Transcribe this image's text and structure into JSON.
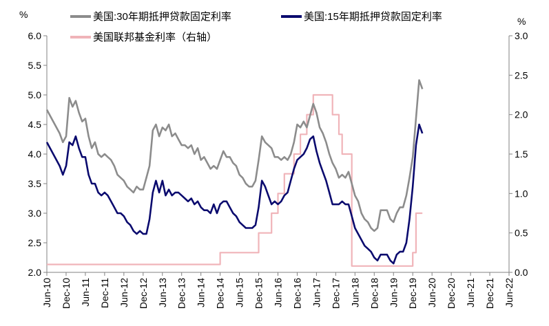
{
  "chart_data": {
    "type": "line",
    "left_axis_unit": "%",
    "right_axis_unit": "%",
    "ylim_left": [
      2.0,
      6.0
    ],
    "ylim_right": [
      0.0,
      3.0
    ],
    "yticks_left": [
      "2.0",
      "2.5",
      "3.0",
      "3.5",
      "4.0",
      "4.5",
      "5.0",
      "5.5",
      "6.0"
    ],
    "yticks_right": [
      "0.0",
      "0.5",
      "1.0",
      "1.5",
      "2.0",
      "2.5",
      "3.0"
    ],
    "x_tick_labels": [
      "Jun-10",
      "Dec-10",
      "Jun-11",
      "Dec-11",
      "Jun-12",
      "Dec-12",
      "Jun-13",
      "Dec-13",
      "Jun-14",
      "Dec-14",
      "Jun-15",
      "Dec-15",
      "Jun-16",
      "Dec-16",
      "Jun-17",
      "Dec-17",
      "Jun-18",
      "Dec-18",
      "Jun-19",
      "Dec-19",
      "Jun-20",
      "Dec-20",
      "Jun-21",
      "Dec-21",
      "Jun-22"
    ],
    "grid": false,
    "legend_position": "top",
    "series": [
      {
        "name": "美国:30年期抵押贷款固定利率",
        "axis": "left",
        "color": "#8c8c8c",
        "points": [
          [
            0,
            4.75
          ],
          [
            2,
            4.55
          ],
          [
            4,
            4.35
          ],
          [
            5,
            4.2
          ],
          [
            6,
            4.3
          ],
          [
            7,
            4.95
          ],
          [
            8,
            4.8
          ],
          [
            9,
            4.9
          ],
          [
            10,
            4.7
          ],
          [
            11,
            4.55
          ],
          [
            12,
            4.6
          ],
          [
            13,
            4.3
          ],
          [
            14,
            4.1
          ],
          [
            15,
            4.2
          ],
          [
            16,
            4.0
          ],
          [
            17,
            3.95
          ],
          [
            18,
            4.0
          ],
          [
            19,
            3.95
          ],
          [
            20,
            3.9
          ],
          [
            21,
            3.8
          ],
          [
            22,
            3.65
          ],
          [
            23,
            3.6
          ],
          [
            24,
            3.55
          ],
          [
            25,
            3.45
          ],
          [
            26,
            3.4
          ],
          [
            27,
            3.35
          ],
          [
            28,
            3.45
          ],
          [
            29,
            3.4
          ],
          [
            30,
            3.4
          ],
          [
            31,
            3.6
          ],
          [
            32,
            3.8
          ],
          [
            33,
            4.4
          ],
          [
            34,
            4.5
          ],
          [
            35,
            4.3
          ],
          [
            36,
            4.45
          ],
          [
            37,
            4.4
          ],
          [
            38,
            4.5
          ],
          [
            39,
            4.3
          ],
          [
            40,
            4.35
          ],
          [
            41,
            4.25
          ],
          [
            42,
            4.15
          ],
          [
            43,
            4.15
          ],
          [
            44,
            4.1
          ],
          [
            45,
            4.15
          ],
          [
            46,
            4.0
          ],
          [
            47,
            4.1
          ],
          [
            48,
            3.9
          ],
          [
            49,
            3.95
          ],
          [
            50,
            3.85
          ],
          [
            51,
            3.75
          ],
          [
            52,
            3.8
          ],
          [
            53,
            3.75
          ],
          [
            54,
            3.9
          ],
          [
            55,
            4.05
          ],
          [
            56,
            3.95
          ],
          [
            57,
            3.95
          ],
          [
            58,
            3.85
          ],
          [
            59,
            3.8
          ],
          [
            60,
            3.65
          ],
          [
            61,
            3.6
          ],
          [
            62,
            3.5
          ],
          [
            63,
            3.45
          ],
          [
            64,
            3.45
          ],
          [
            65,
            3.55
          ],
          [
            66,
            3.9
          ],
          [
            67,
            4.3
          ],
          [
            68,
            4.2
          ],
          [
            69,
            4.15
          ],
          [
            70,
            4.1
          ],
          [
            71,
            3.95
          ],
          [
            72,
            3.95
          ],
          [
            73,
            3.9
          ],
          [
            74,
            3.95
          ],
          [
            75,
            3.9
          ],
          [
            76,
            4.0
          ],
          [
            77,
            4.2
          ],
          [
            78,
            4.5
          ],
          [
            79,
            4.45
          ],
          [
            80,
            4.55
          ],
          [
            81,
            4.45
          ],
          [
            82,
            4.65
          ],
          [
            83,
            4.85
          ],
          [
            84,
            4.7
          ],
          [
            85,
            4.45
          ],
          [
            86,
            4.35
          ],
          [
            87,
            4.2
          ],
          [
            88,
            4.0
          ],
          [
            89,
            3.85
          ],
          [
            90,
            3.75
          ],
          [
            91,
            3.6
          ],
          [
            92,
            3.65
          ],
          [
            93,
            3.6
          ],
          [
            94,
            3.7
          ],
          [
            95,
            3.5
          ],
          [
            96,
            3.3
          ],
          [
            97,
            3.2
          ],
          [
            98,
            3.0
          ],
          [
            99,
            2.9
          ],
          [
            100,
            2.85
          ],
          [
            101,
            2.75
          ],
          [
            102,
            2.7
          ],
          [
            103,
            2.75
          ],
          [
            104,
            3.05
          ],
          [
            105,
            3.05
          ],
          [
            106,
            3.05
          ],
          [
            107,
            2.9
          ],
          [
            108,
            2.85
          ],
          [
            109,
            3.0
          ],
          [
            110,
            3.1
          ],
          [
            111,
            3.1
          ],
          [
            112,
            3.3
          ],
          [
            113,
            3.6
          ],
          [
            114,
            3.95
          ],
          [
            115,
            4.6
          ],
          [
            116,
            5.25
          ],
          [
            117,
            5.1
          ]
        ]
      },
      {
        "name": "美国:15年期抵押贷款固定利率",
        "axis": "left",
        "color": "#0a0a6e",
        "points": [
          [
            0,
            4.2
          ],
          [
            2,
            4.0
          ],
          [
            4,
            3.8
          ],
          [
            5,
            3.65
          ],
          [
            6,
            3.8
          ],
          [
            7,
            4.2
          ],
          [
            8,
            4.15
          ],
          [
            9,
            4.3
          ],
          [
            10,
            4.1
          ],
          [
            11,
            3.95
          ],
          [
            12,
            3.95
          ],
          [
            13,
            3.65
          ],
          [
            14,
            3.5
          ],
          [
            15,
            3.5
          ],
          [
            16,
            3.35
          ],
          [
            17,
            3.3
          ],
          [
            18,
            3.35
          ],
          [
            19,
            3.3
          ],
          [
            20,
            3.2
          ],
          [
            21,
            3.1
          ],
          [
            22,
            3.0
          ],
          [
            23,
            3.0
          ],
          [
            24,
            2.95
          ],
          [
            25,
            2.85
          ],
          [
            26,
            2.8
          ],
          [
            27,
            2.7
          ],
          [
            28,
            2.65
          ],
          [
            29,
            2.7
          ],
          [
            30,
            2.65
          ],
          [
            31,
            2.65
          ],
          [
            32,
            2.9
          ],
          [
            33,
            3.35
          ],
          [
            34,
            3.55
          ],
          [
            35,
            3.35
          ],
          [
            36,
            3.55
          ],
          [
            37,
            3.3
          ],
          [
            38,
            3.4
          ],
          [
            39,
            3.3
          ],
          [
            40,
            3.35
          ],
          [
            41,
            3.35
          ],
          [
            42,
            3.3
          ],
          [
            43,
            3.25
          ],
          [
            44,
            3.2
          ],
          [
            45,
            3.25
          ],
          [
            46,
            3.15
          ],
          [
            47,
            3.2
          ],
          [
            48,
            3.1
          ],
          [
            49,
            3.05
          ],
          [
            50,
            3.05
          ],
          [
            51,
            3.0
          ],
          [
            52,
            3.15
          ],
          [
            53,
            3.0
          ],
          [
            54,
            3.15
          ],
          [
            55,
            3.2
          ],
          [
            56,
            3.2
          ],
          [
            57,
            3.1
          ],
          [
            58,
            3.0
          ],
          [
            59,
            2.95
          ],
          [
            60,
            2.85
          ],
          [
            61,
            2.8
          ],
          [
            62,
            2.75
          ],
          [
            63,
            2.75
          ],
          [
            64,
            2.75
          ],
          [
            65,
            2.8
          ],
          [
            66,
            3.1
          ],
          [
            67,
            3.55
          ],
          [
            68,
            3.45
          ],
          [
            69,
            3.3
          ],
          [
            70,
            3.15
          ],
          [
            71,
            3.2
          ],
          [
            72,
            3.15
          ],
          [
            73,
            3.2
          ],
          [
            74,
            3.3
          ],
          [
            75,
            3.35
          ],
          [
            76,
            3.55
          ],
          [
            77,
            3.75
          ],
          [
            78,
            3.9
          ],
          [
            79,
            3.95
          ],
          [
            80,
            4.0
          ],
          [
            81,
            4.1
          ],
          [
            82,
            4.25
          ],
          [
            83,
            4.3
          ],
          [
            84,
            4.05
          ],
          [
            85,
            3.85
          ],
          [
            86,
            3.7
          ],
          [
            87,
            3.55
          ],
          [
            88,
            3.35
          ],
          [
            89,
            3.15
          ],
          [
            90,
            3.15
          ],
          [
            91,
            3.15
          ],
          [
            92,
            3.2
          ],
          [
            93,
            3.15
          ],
          [
            94,
            3.15
          ],
          [
            95,
            2.95
          ],
          [
            96,
            2.75
          ],
          [
            97,
            2.65
          ],
          [
            98,
            2.55
          ],
          [
            99,
            2.45
          ],
          [
            100,
            2.4
          ],
          [
            101,
            2.35
          ],
          [
            102,
            2.25
          ],
          [
            103,
            2.2
          ],
          [
            104,
            2.3
          ],
          [
            105,
            2.3
          ],
          [
            106,
            2.3
          ],
          [
            107,
            2.2
          ],
          [
            108,
            2.15
          ],
          [
            109,
            2.3
          ],
          [
            110,
            2.35
          ],
          [
            111,
            2.35
          ],
          [
            112,
            2.5
          ],
          [
            113,
            2.9
          ],
          [
            114,
            3.45
          ],
          [
            115,
            4.15
          ],
          [
            116,
            4.5
          ],
          [
            117,
            4.35
          ]
        ]
      },
      {
        "name": "美国联邦基金利率（右轴）",
        "axis": "right",
        "color": "#f0b4b9",
        "points": [
          [
            0,
            0.1
          ],
          [
            54,
            0.1
          ],
          [
            54,
            0.25
          ],
          [
            66,
            0.25
          ],
          [
            66,
            0.5
          ],
          [
            70,
            0.5
          ],
          [
            70,
            0.75
          ],
          [
            72,
            0.75
          ],
          [
            72,
            1.0
          ],
          [
            74,
            1.0
          ],
          [
            74,
            1.25
          ],
          [
            77,
            1.25
          ],
          [
            77,
            1.5
          ],
          [
            79,
            1.5
          ],
          [
            79,
            1.75
          ],
          [
            81,
            1.75
          ],
          [
            81,
            2.0
          ],
          [
            83,
            2.0
          ],
          [
            83,
            2.25
          ],
          [
            89,
            2.25
          ],
          [
            89,
            2.0
          ],
          [
            91,
            2.0
          ],
          [
            91,
            1.75
          ],
          [
            92,
            1.75
          ],
          [
            92,
            1.5
          ],
          [
            95,
            1.5
          ],
          [
            95,
            0.08
          ],
          [
            114,
            0.08
          ],
          [
            114,
            0.25
          ],
          [
            115,
            0.25
          ],
          [
            115,
            0.75
          ],
          [
            117,
            0.75
          ]
        ]
      }
    ]
  }
}
